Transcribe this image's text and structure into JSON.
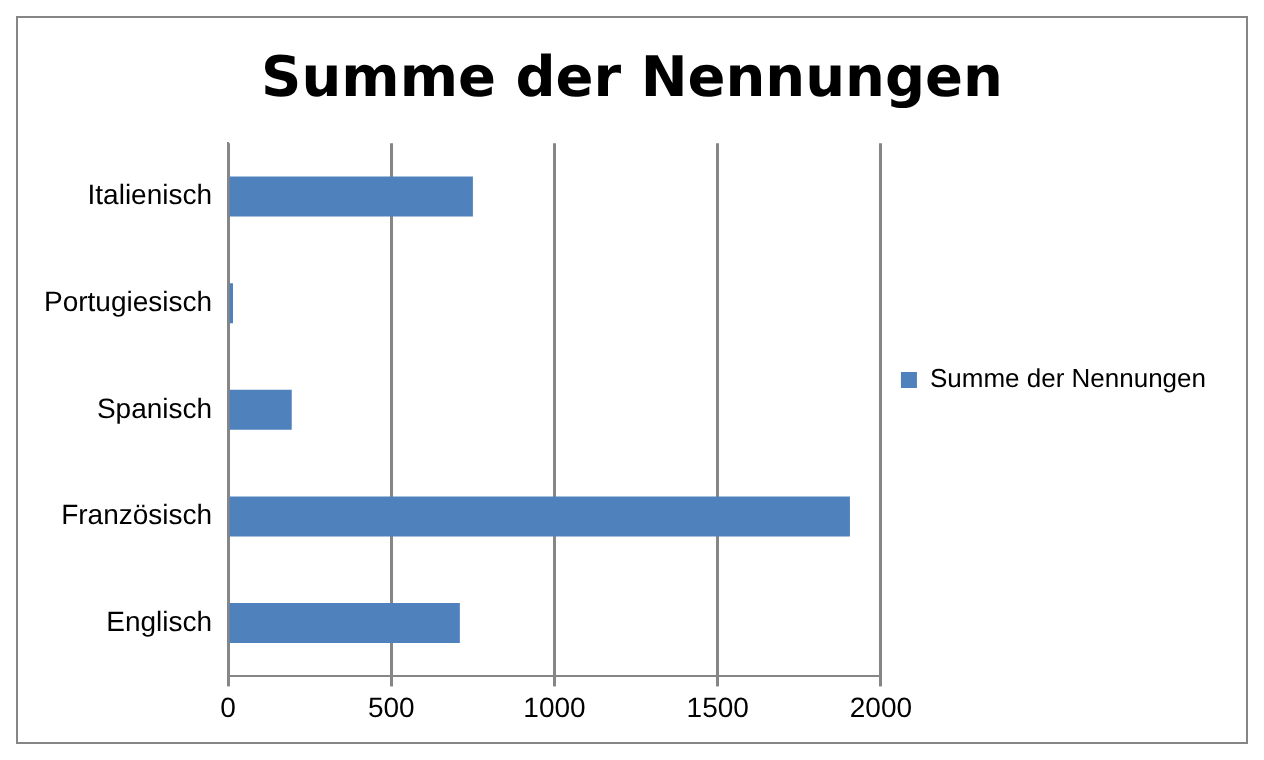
{
  "chart_data": {
    "type": "bar",
    "orientation": "horizontal",
    "title": "Summe der Nennungen",
    "categories": [
      "Italienisch",
      "Portugiesisch",
      "Spanisch",
      "Französisch",
      "Englisch"
    ],
    "series": [
      {
        "name": "Summe der Nennungen",
        "color": "#4f81bd",
        "values": [
          750,
          15,
          195,
          1905,
          710
        ]
      }
    ],
    "xlim": [
      0,
      2000
    ],
    "xticks": [
      0,
      500,
      1000,
      1500,
      2000
    ],
    "grid": "x",
    "legend": "right"
  }
}
